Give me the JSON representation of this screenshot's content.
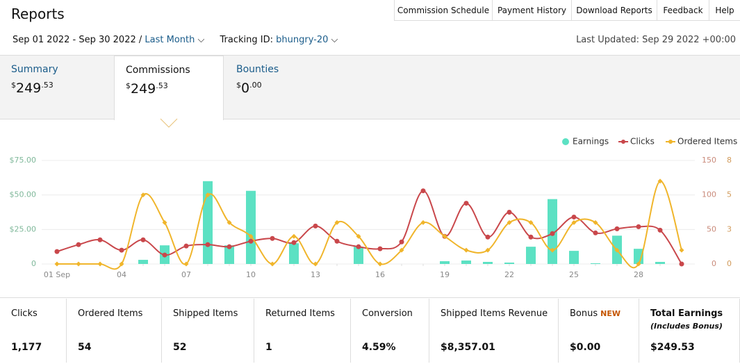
{
  "header": {
    "title": "Reports",
    "nav": [
      "Commission Schedule",
      "Payment History",
      "Download Reports",
      "Feedback",
      "Help"
    ],
    "date_range": "Sep 01 2022 - Sep 30 2022 /",
    "period": "Last Month",
    "tracking_label": "Tracking ID:",
    "tracking_id": "bhungry-20",
    "last_updated": "Last Updated: Sep 29 2022 +00:00"
  },
  "tabs": [
    {
      "label": "Summary",
      "currency": "$",
      "whole": "249",
      "cents": ".53"
    },
    {
      "label": "Commissions",
      "currency": "$",
      "whole": "249",
      "cents": ".53"
    },
    {
      "label": "Bounties",
      "currency": "$",
      "whole": "0",
      "cents": ".00"
    }
  ],
  "chart_data": {
    "type": "combo",
    "categories": [
      "01 Sep",
      null,
      null,
      "04",
      null,
      null,
      "07",
      null,
      null,
      "10",
      null,
      null,
      "13",
      null,
      null,
      "16",
      null,
      null,
      "19",
      null,
      null,
      "22",
      null,
      null,
      "25",
      null,
      null,
      "28",
      null,
      null
    ],
    "series": [
      {
        "name": "Earnings",
        "type": "bar",
        "axis": "y",
        "color": "#5ce1c3",
        "values": [
          0,
          0,
          0,
          0,
          3,
          13.5,
          0,
          60,
          13.5,
          53,
          0,
          15,
          0,
          0,
          12.5,
          0,
          0,
          0,
          2,
          2.5,
          1.5,
          1,
          12.5,
          47,
          9.5,
          0.5,
          20.5,
          11,
          1.5,
          0
        ]
      },
      {
        "name": "Clicks",
        "type": "line",
        "axis": "y2",
        "color": "#c9474b",
        "values": [
          18,
          28,
          35,
          20,
          35,
          13,
          26,
          28,
          25,
          33,
          37,
          31,
          55,
          33,
          25,
          22,
          32,
          106,
          40,
          88,
          39,
          75,
          39,
          44,
          68,
          45,
          51,
          54,
          49,
          0
        ]
      },
      {
        "name": "Ordered Items",
        "type": "line",
        "axis": "y3",
        "color": "#f0b52b",
        "values": [
          0,
          0,
          0,
          0,
          5,
          3,
          0,
          5,
          3,
          2,
          0,
          2,
          0,
          3,
          2,
          0,
          1,
          3,
          2,
          1,
          1,
          3,
          3,
          1,
          3,
          3,
          1,
          0,
          6,
          1
        ]
      }
    ],
    "ylim": [
      0,
      75
    ],
    "yticks": [
      0,
      {
        "value": 25,
        "label": "$25.00"
      },
      {
        "value": 50,
        "label": "$50.00"
      },
      {
        "value": 75,
        "label": "$75.00"
      }
    ],
    "y2lim": [
      0,
      150
    ],
    "y2ticks": [
      0,
      50,
      100,
      150
    ],
    "y3lim": [
      0,
      7.5
    ],
    "y3ticks": [
      0,
      {
        "value": 2.5,
        "label": "3"
      },
      5,
      {
        "value": 7.5,
        "label": "8"
      }
    ],
    "grid": true,
    "legend": "top-right"
  },
  "stats": [
    {
      "label": "Clicks",
      "value": "1,177"
    },
    {
      "label": "Ordered Items",
      "value": "54"
    },
    {
      "label": "Shipped Items",
      "value": "52"
    },
    {
      "label": "Returned Items",
      "value": "1"
    },
    {
      "label": "Conversion",
      "value": "4.59%"
    },
    {
      "label": "Shipped Items Revenue",
      "value": "$8,357.01"
    },
    {
      "label": "Bonus",
      "badge": "NEW",
      "value": "$0.00"
    },
    {
      "label": "Total Earnings",
      "note": "(Includes Bonus)",
      "value": "$249.53"
    }
  ]
}
